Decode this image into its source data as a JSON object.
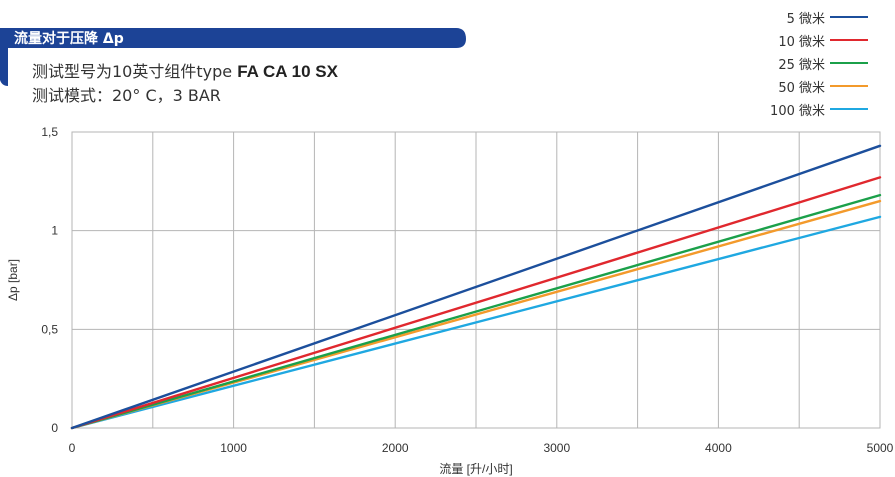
{
  "header": {
    "title": "流量对于压降 Δp",
    "subtitle_prefix": "测试型号为10英寸组件type ",
    "subtitle_model": "FA CA 10 SX",
    "subtitle_line2": "测试模式：20° C，3 BAR",
    "banner_color": "#1c4396"
  },
  "chart_data": {
    "type": "line",
    "xlabel": "流量 [升/小时]",
    "ylabel": "Δp [bar]",
    "xlim": [
      0,
      5000
    ],
    "ylim": [
      0,
      1.5
    ],
    "x_ticks": [
      0,
      1000,
      2000,
      3000,
      4000,
      5000
    ],
    "x_tick_labels": [
      "0",
      "1000",
      "2000",
      "3000",
      "4000",
      "5000"
    ],
    "y_ticks": [
      0,
      0.5,
      1,
      1.5
    ],
    "y_tick_labels": [
      "0",
      "0,5",
      "1",
      "1,5"
    ],
    "x_gridlines": [
      500,
      1000,
      1500,
      2000,
      2500,
      3000,
      3500,
      4000,
      4500,
      5000
    ],
    "grid": true,
    "legend_position": "top-right",
    "series": [
      {
        "name": "5 微米",
        "color": "#1c4f9c",
        "x": [
          0,
          5000
        ],
        "y": [
          0,
          1.43
        ]
      },
      {
        "name": "10 微米",
        "color": "#e0282e",
        "x": [
          0,
          5000
        ],
        "y": [
          0,
          1.27
        ]
      },
      {
        "name": "25 微米",
        "color": "#1ba04a",
        "x": [
          0,
          5000
        ],
        "y": [
          0,
          1.18
        ]
      },
      {
        "name": "50 微米",
        "color": "#f39a2b",
        "x": [
          0,
          5000
        ],
        "y": [
          0,
          1.15
        ]
      },
      {
        "name": "100 微米",
        "color": "#1fa8e1",
        "x": [
          0,
          5000
        ],
        "y": [
          0,
          1.07
        ]
      }
    ]
  }
}
